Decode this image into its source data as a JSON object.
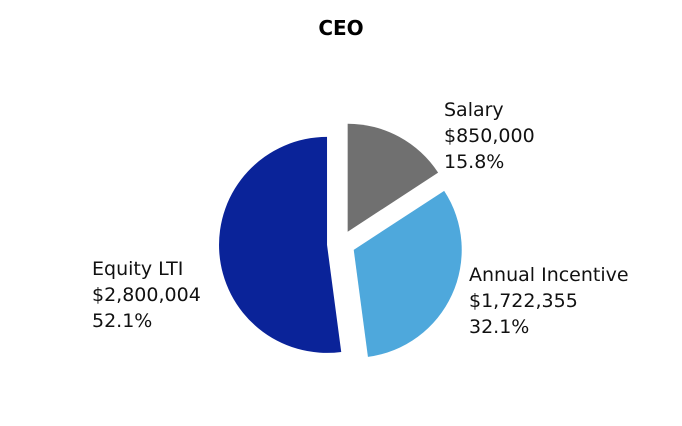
{
  "chart_data": {
    "type": "pie",
    "title": "CEO",
    "slices": [
      {
        "name": "Salary",
        "value_text": "$850,000",
        "percent": 15.8,
        "percent_text": "15.8%",
        "color": "#707070"
      },
      {
        "name": "Annual Incentive",
        "value_text": "$1,722,355",
        "percent": 32.1,
        "percent_text": "32.1%",
        "color": "#4EA8DC"
      },
      {
        "name": "Equity LTI",
        "value_text": "$2,800,004",
        "percent": 52.1,
        "percent_text": "52.1%",
        "color": "#0A2399"
      }
    ]
  }
}
